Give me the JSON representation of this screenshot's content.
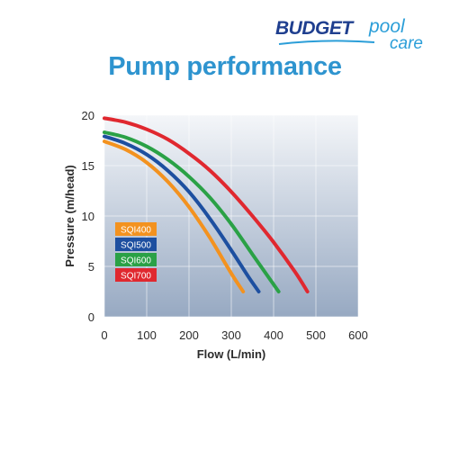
{
  "brand": {
    "main": "BUDGET",
    "sub1": "pool",
    "sub2": "care"
  },
  "title": "Pump performance",
  "chart_data": {
    "type": "line",
    "xlabel": "Flow (L/min)",
    "ylabel": "Pressure (m/head)",
    "xlim": [
      0,
      600
    ],
    "ylim": [
      0,
      20
    ],
    "xticks": [
      0,
      100,
      200,
      300,
      400,
      500,
      600
    ],
    "yticks": [
      0,
      5,
      10,
      15,
      20
    ],
    "grid": true,
    "legend_position": "left",
    "series": [
      {
        "name": "SQI400",
        "color": "#f3921f",
        "points": [
          [
            0,
            17.4
          ],
          [
            50,
            16.6
          ],
          [
            100,
            15.3
          ],
          [
            150,
            13.4
          ],
          [
            200,
            10.9
          ],
          [
            250,
            7.8
          ],
          [
            300,
            4.3
          ],
          [
            328,
            2.5
          ]
        ]
      },
      {
        "name": "SQI500",
        "color": "#1d4fa0",
        "points": [
          [
            0,
            17.9
          ],
          [
            50,
            17.2
          ],
          [
            100,
            16.1
          ],
          [
            150,
            14.5
          ],
          [
            200,
            12.4
          ],
          [
            250,
            9.7
          ],
          [
            300,
            6.6
          ],
          [
            340,
            4.0
          ],
          [
            365,
            2.5
          ]
        ]
      },
      {
        "name": "SQI600",
        "color": "#2aa146",
        "points": [
          [
            0,
            18.3
          ],
          [
            50,
            17.8
          ],
          [
            100,
            16.9
          ],
          [
            150,
            15.6
          ],
          [
            200,
            13.9
          ],
          [
            250,
            11.8
          ],
          [
            300,
            9.2
          ],
          [
            350,
            6.2
          ],
          [
            390,
            3.8
          ],
          [
            412,
            2.5
          ]
        ]
      },
      {
        "name": "SQI700",
        "color": "#e0282f",
        "points": [
          [
            0,
            19.7
          ],
          [
            50,
            19.3
          ],
          [
            100,
            18.6
          ],
          [
            150,
            17.6
          ],
          [
            200,
            16.2
          ],
          [
            250,
            14.5
          ],
          [
            300,
            12.4
          ],
          [
            350,
            10.0
          ],
          [
            400,
            7.4
          ],
          [
            450,
            4.5
          ],
          [
            480,
            2.5
          ]
        ]
      }
    ]
  }
}
